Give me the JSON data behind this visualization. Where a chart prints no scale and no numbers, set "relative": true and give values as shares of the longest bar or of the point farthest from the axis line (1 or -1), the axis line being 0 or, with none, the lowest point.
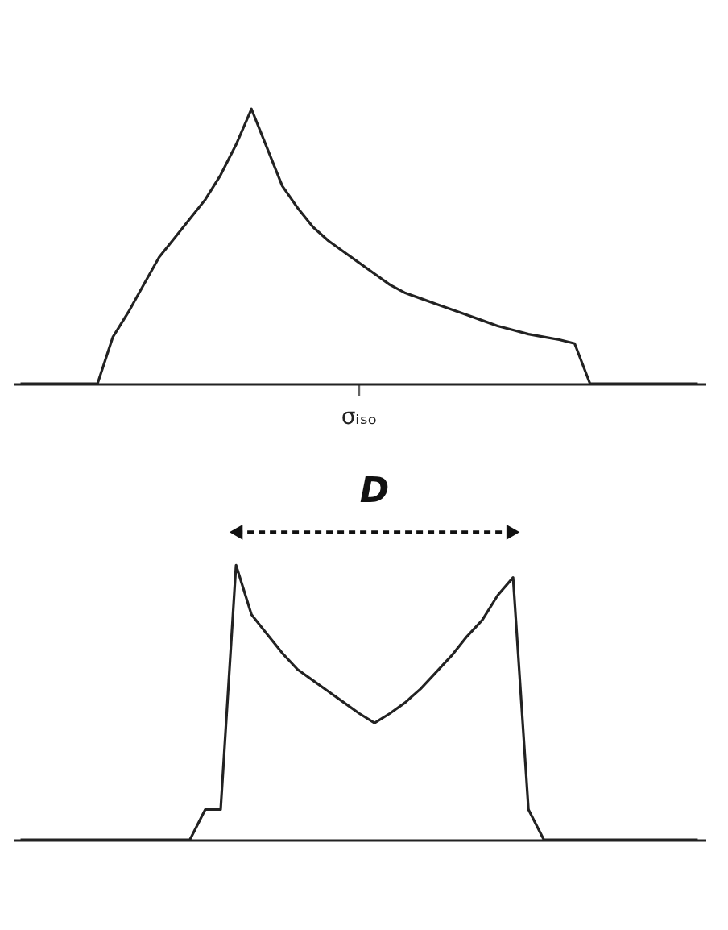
{
  "chart_data": [
    {
      "type": "line",
      "relative": true,
      "categories": [
        null,
        null,
        null,
        null,
        null,
        null,
        null,
        null,
        null,
        null,
        null,
        null,
        null,
        null,
        null,
        null,
        null,
        null,
        null,
        null,
        null,
        null,
        null,
        null,
        null,
        null,
        null,
        null,
        null,
        null,
        null,
        null,
        null,
        null,
        null,
        null,
        null,
        null,
        null,
        null,
        null,
        null,
        null,
        null,
        null
      ],
      "series": [
        {
          "color": "#222222",
          "values": [
            0,
            0,
            0,
            0,
            0,
            0,
            0.17,
            0.26,
            0.36,
            0.46,
            0.53,
            0.6,
            0.67,
            0.76,
            0.87,
            1,
            0.86,
            0.72,
            0.64,
            0.57,
            0.52,
            0.48,
            0.44,
            0.4,
            0.36,
            0.33,
            0.31,
            0.29,
            0.27,
            0.25,
            0.23,
            0.21,
            0.195,
            0.18,
            0.17,
            0.16,
            0.146,
            0,
            0,
            0,
            0,
            0,
            0,
            0,
            0
          ]
        }
      ],
      "annotations": [
        "σᵢₛₒ"
      ]
    },
    {
      "type": "line",
      "relative": true,
      "categories": [
        null,
        null,
        null,
        null,
        null,
        null,
        null,
        null,
        null,
        null,
        null,
        null,
        null,
        null,
        null,
        null,
        null,
        null,
        null,
        null,
        null,
        null,
        null,
        null,
        null,
        null,
        null,
        null,
        null,
        null,
        null,
        null,
        null,
        null,
        null,
        null,
        null,
        null,
        null,
        null,
        null,
        null,
        null,
        null,
        null
      ],
      "series": [
        {
          "color": "#222222",
          "values": [
            0,
            0,
            0,
            0,
            0,
            0,
            0,
            0,
            0,
            0,
            0,
            0,
            0.11,
            0.11,
            1,
            0.82,
            0.75,
            0.68,
            0.62,
            0.58,
            0.54,
            0.5,
            0.46,
            0.425,
            0.46,
            0.5,
            0.55,
            0.61,
            0.67,
            0.74,
            0.8,
            0.89,
            0.955,
            0.11,
            0,
            0,
            0,
            0,
            0,
            0,
            0,
            0,
            0,
            0,
            0
          ]
        }
      ],
      "annotations": [
        "D"
      ]
    }
  ]
}
